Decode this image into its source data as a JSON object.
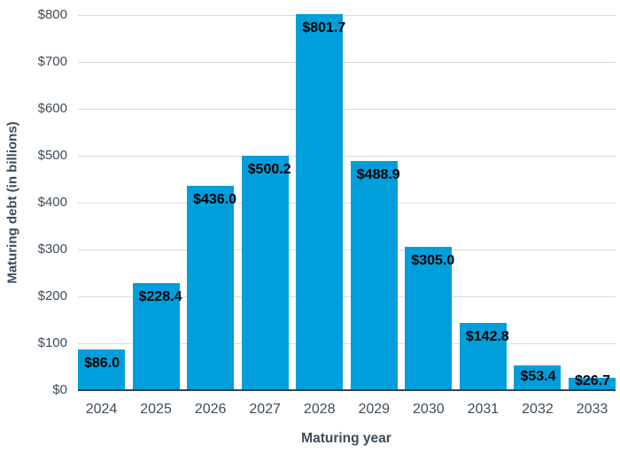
{
  "chart_data": {
    "type": "bar",
    "title": "",
    "xlabel": "Maturing year",
    "ylabel": "Maturing debt (in billions)",
    "categories": [
      "2024",
      "2025",
      "2026",
      "2027",
      "2028",
      "2029",
      "2030",
      "2031",
      "2032",
      "2033"
    ],
    "values": [
      86.0,
      228.4,
      436.0,
      500.2,
      801.7,
      488.9,
      305.0,
      142.8,
      53.4,
      26.7
    ],
    "bar_labels": [
      "$86.0",
      "$228.4",
      "$436.0",
      "$500.2",
      "$801.7",
      "$488.9",
      "$305.0",
      "$142.8",
      "$53.4",
      "$26.7"
    ],
    "y_ticks": [
      "$0",
      "$100",
      "$200",
      "$300",
      "$400",
      "$500",
      "$600",
      "$700",
      "$800"
    ],
    "y_tick_values": [
      0,
      100,
      200,
      300,
      400,
      500,
      600,
      700,
      800
    ],
    "ylim": [
      0,
      800
    ],
    "grid": "horizontal",
    "legend": "none",
    "colors": {
      "bar": "#009edb",
      "bar_label": "#000000",
      "axis_text": "#3e4c59",
      "gridline": "#d9d9d9",
      "axis_line": "#3a4247"
    }
  }
}
